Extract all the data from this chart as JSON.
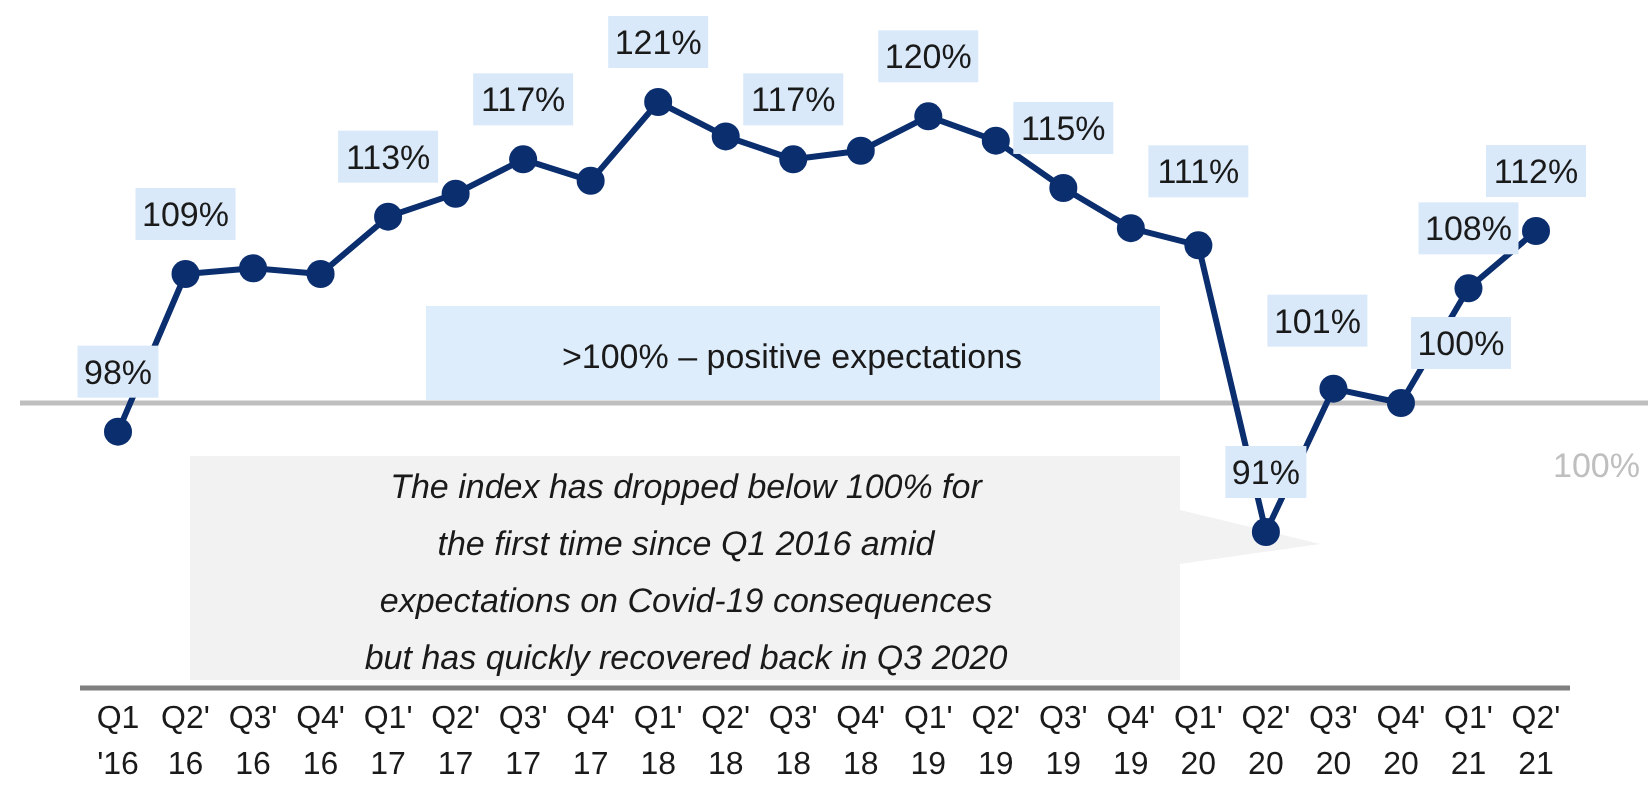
{
  "chart_data": {
    "type": "line",
    "categories": [
      "Q1\n'16",
      "Q2'\n16",
      "Q3'\n16",
      "Q4'\n16",
      "Q1'\n17",
      "Q2'\n17",
      "Q3'\n17",
      "Q4'\n17",
      "Q1'\n18",
      "Q2'\n18",
      "Q3'\n18",
      "Q4'\n18",
      "Q1'\n19",
      "Q2'\n19",
      "Q3'\n19",
      "Q4'\n19",
      "Q1'\n20",
      "Q2'\n20",
      "Q3'\n20",
      "Q4'\n20",
      "Q1'\n21",
      "Q2'\n21"
    ],
    "series": [
      {
        "color": "#0b2e6f",
        "values": [
          98,
          109,
          109.4,
          109,
          113,
          114.6,
          117,
          115.5,
          121,
          118.6,
          117,
          117.6,
          120,
          118.3,
          115,
          112.2,
          111,
          91,
          101,
          100,
          108,
          112
        ],
        "value_labels": [
          "98%",
          "109%",
          null,
          null,
          "113%",
          null,
          "117%",
          null,
          "121%",
          null,
          "117%",
          null,
          "120%",
          null,
          "115%",
          null,
          "111%",
          "91%",
          "101%",
          "100%",
          "108%",
          "112%"
        ]
      }
    ],
    "tick_labels": "x",
    "marker": "circle",
    "line_style": "solid",
    "ref_lines": [
      {
        "axis": "y",
        "value": 100,
        "label": "100%",
        "color": "#bfbfbf"
      }
    ],
    "annotations": [
      ">100% – positive expectations",
      "The index has dropped below 100% for\nthe first time since Q1 2016 amid\nexpectations on Covid-19 consequences\nbut has quickly recovered back in Q3 2020"
    ]
  }
}
